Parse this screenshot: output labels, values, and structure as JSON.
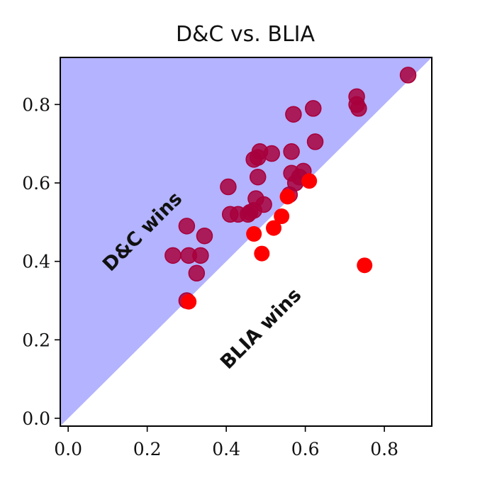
{
  "chart_data": {
    "type": "scatter",
    "title": "D&C vs. BLIA",
    "xlabel": "",
    "ylabel": "",
    "xlim": [
      -0.02,
      0.92
    ],
    "ylim": [
      -0.02,
      0.92
    ],
    "xticks": [
      "0.0",
      "0.2",
      "0.4",
      "0.6",
      "0.8"
    ],
    "yticks": [
      "0.0",
      "0.2",
      "0.4",
      "0.6",
      "0.8"
    ],
    "xtick_values": [
      0.0,
      0.2,
      0.4,
      0.6,
      0.8
    ],
    "ytick_values": [
      0.0,
      0.2,
      0.4,
      0.6,
      0.8
    ],
    "grid": false,
    "annotations": {
      "upper": "D&C wins",
      "lower": "BLIA wins"
    },
    "colors": {
      "upper_region": "#b3b3ff",
      "point_above": "#a8003c",
      "point_below": "#ff0000"
    },
    "series": [
      {
        "x": [
          0.86,
          0.73,
          0.73,
          0.735,
          0.62,
          0.57,
          0.625,
          0.485,
          0.515,
          0.47,
          0.565,
          0.48,
          0.565,
          0.595,
          0.585,
          0.575,
          0.56,
          0.48,
          0.405,
          0.475,
          0.495,
          0.41,
          0.43,
          0.455,
          0.46,
          0.47,
          0.3,
          0.345,
          0.265,
          0.305,
          0.335,
          0.325,
          0.3
        ],
        "y": [
          0.875,
          0.82,
          0.8,
          0.79,
          0.79,
          0.775,
          0.705,
          0.68,
          0.675,
          0.66,
          0.68,
          0.665,
          0.625,
          0.63,
          0.615,
          0.6,
          0.57,
          0.615,
          0.59,
          0.56,
          0.545,
          0.52,
          0.52,
          0.52,
          0.525,
          0.53,
          0.49,
          0.465,
          0.415,
          0.415,
          0.415,
          0.37,
          0.3
        ]
      },
      {
        "x": [
          0.61,
          0.555,
          0.54,
          0.52,
          0.49,
          0.47,
          0.75,
          0.305
        ],
        "y": [
          0.605,
          0.565,
          0.515,
          0.485,
          0.42,
          0.47,
          0.39,
          0.297
        ]
      }
    ]
  }
}
